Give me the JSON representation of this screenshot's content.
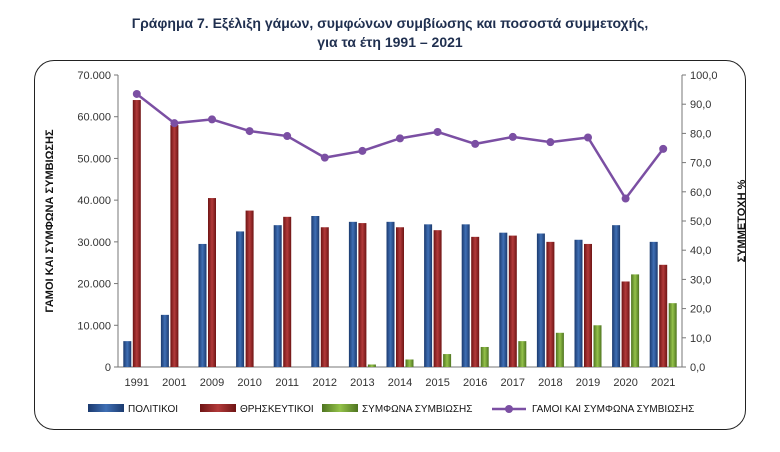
{
  "title_line1": "Γράφημα 7. Εξέλιξη γάμων, συμφώνων συμβίωσης και ποσοστά συμμετοχής,",
  "title_line2": "για τα έτη 1991 – 2021",
  "colors": {
    "politikoi": "#2b4f8a",
    "thriskeftikoi": "#8a2222",
    "symfona": "#6f9a2e",
    "line": "#7b4fa3"
  },
  "chart_data": {
    "type": "bar",
    "categories": [
      "1991",
      "2001",
      "2009",
      "2010",
      "2011",
      "2012",
      "2013",
      "2014",
      "2015",
      "2016",
      "2017",
      "2018",
      "2019",
      "2020",
      "2021"
    ],
    "series": [
      {
        "name": "ΠΟΛΙΤΙΚΟΙ",
        "type": "bar",
        "axis": "left",
        "values": [
          6200,
          12500,
          29500,
          32500,
          34000,
          36200,
          34800,
          34800,
          34200,
          34200,
          32200,
          32000,
          30500,
          34000,
          30000
        ]
      },
      {
        "name": "ΘΡΗΣΚΕΥΤΙΚΟΙ",
        "type": "bar",
        "axis": "left",
        "values": [
          64000,
          58000,
          40500,
          37500,
          36000,
          33500,
          34500,
          33500,
          32800,
          31200,
          31500,
          30000,
          29500,
          20500,
          24500
        ]
      },
      {
        "name": "ΣΥΜΦΩΝΑ ΣΥΜΒΙΩΣΗΣ",
        "type": "bar",
        "axis": "left",
        "values": [
          0,
          0,
          0,
          0,
          0,
          0,
          600,
          1800,
          3100,
          4800,
          6200,
          8200,
          10000,
          22200,
          15300
        ]
      },
      {
        "name": "ΓΑΜΟΙ ΚΑΙ ΣΥΜΦΩΝΑ ΣΥΜΒΙΩΣΗΣ",
        "type": "line",
        "axis": "right",
        "values": [
          93.5,
          83.5,
          84.8,
          80.8,
          79.1,
          71.7,
          74.0,
          78.3,
          80.5,
          76.4,
          78.8,
          77.0,
          78.6,
          57.7,
          74.7
        ]
      }
    ],
    "ylabel": "ΓΑΜΟΙ ΚΑΙ ΣΥΜΦΩΝΑ ΣΥΜΒΙΩΣΗΣ",
    "y2label": "ΣΥΜΜΕΤΟΧΗ %",
    "ylim": [
      0,
      70000
    ],
    "y2lim": [
      0,
      100
    ],
    "yticks": [
      "0",
      "10.000",
      "20.000",
      "30.000",
      "40.000",
      "50.000",
      "60.000",
      "70.000"
    ],
    "y2ticks": [
      "0,0",
      "10,0",
      "20,0",
      "30,0",
      "40,0",
      "50,0",
      "60,0",
      "70,0",
      "80,0",
      "90,0",
      "100,0"
    ],
    "grid": false,
    "legend_position": "bottom"
  }
}
